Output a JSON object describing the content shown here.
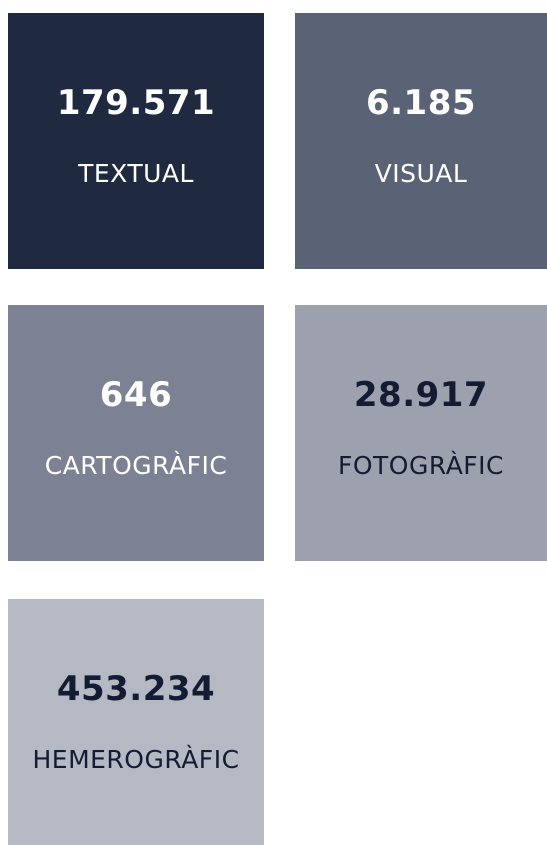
{
  "tiles": [
    {
      "number": "179.571",
      "label": "TEXTUAL"
    },
    {
      "number": "6.185",
      "label": "VISUAL"
    },
    {
      "number": "646",
      "label": "CARTOGRÀFIC"
    },
    {
      "number": "28.917",
      "label": "FOTOGRÀFIC"
    },
    {
      "number": "453.234",
      "label": "HEMEROGRÀFIC"
    }
  ]
}
